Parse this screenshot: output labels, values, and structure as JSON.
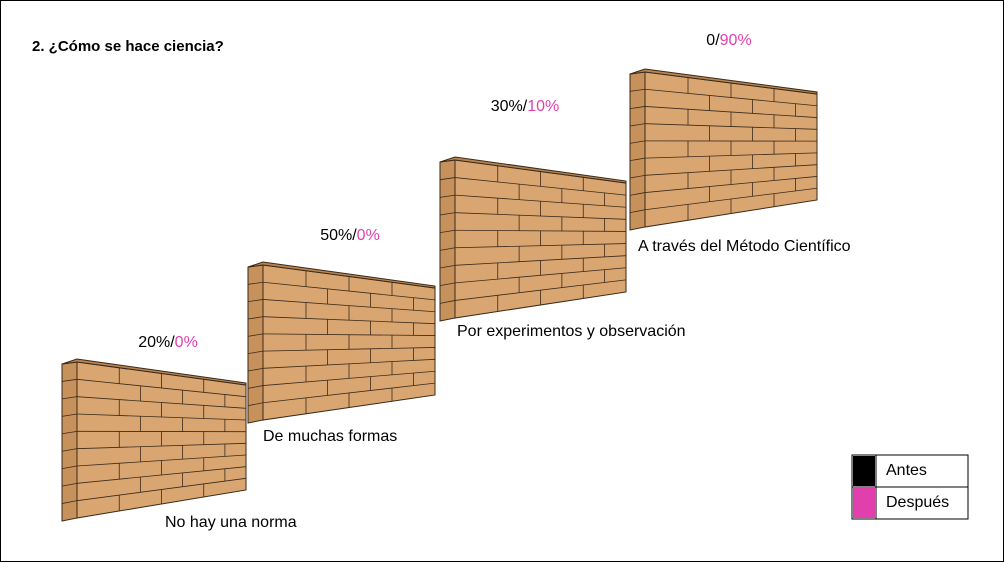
{
  "title": "2. ¿Cómo se hace ciencia?",
  "items": [
    {
      "before": "20%",
      "separator": "/",
      "after": "0%",
      "label": "No hay una norma"
    },
    {
      "before": "50%",
      "separator": "/",
      "after": "0%",
      "label": "De muchas formas"
    },
    {
      "before": "30%",
      "separator": "/",
      "after": "10%",
      "label": "Por experimentos y observación"
    },
    {
      "before": "0",
      "separator": "/",
      "after": "90%",
      "label": "A través del Método Científico"
    }
  ],
  "legend": [
    {
      "label": "Antes",
      "color": "#000000"
    },
    {
      "label": "Después",
      "color": "#e23fae"
    }
  ]
}
